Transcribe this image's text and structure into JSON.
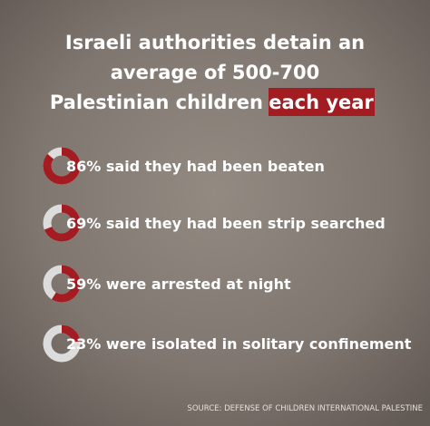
{
  "title_lines": [
    "Israeli authorities detain an",
    "average of 500-700",
    "Palestinian children"
  ],
  "title_highlight": "each year",
  "items": [
    {
      "percent": 86,
      "text": "86% said they had been beaten"
    },
    {
      "percent": 69,
      "text": "69% said they had been strip searched"
    },
    {
      "percent": 59,
      "text": "59% were arrested at night"
    },
    {
      "percent": 23,
      "text": "23% were isolated in solitary confinement"
    }
  ],
  "source": "SOURCE: DEFENSE OF CHILDREN INTERNATIONAL PALESTINE"
}
